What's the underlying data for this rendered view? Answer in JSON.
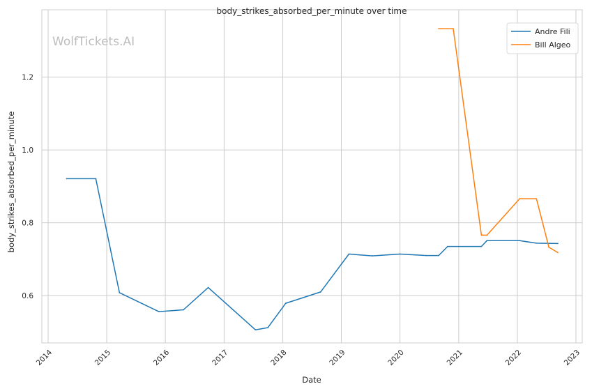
{
  "chart_data": {
    "type": "line",
    "title": "body_strikes_absorbed_per_minute over time",
    "xlabel": "Date",
    "ylabel": "body_strikes_absorbed_per_minute",
    "watermark": "WolfTickets.AI",
    "x_ticks": [
      "2014",
      "2015",
      "2016",
      "2017",
      "2018",
      "2019",
      "2020",
      "2021",
      "2022",
      "2023"
    ],
    "y_ticks": [
      "0.6",
      "0.8",
      "1.0",
      "1.2"
    ],
    "xlim": [
      "2014-01-01",
      "2023-01-01"
    ],
    "ylim": [
      0.47,
      1.385
    ],
    "grid": true,
    "legend_position": "top-right",
    "series": [
      {
        "name": "Andre Fili",
        "color": "#1f77b4",
        "points": [
          [
            "2014-04-26",
            0.921
          ],
          [
            "2014-10-25",
            0.921
          ],
          [
            "2015-03-21",
            0.608
          ],
          [
            "2015-11-21",
            0.556
          ],
          [
            "2016-04-23",
            0.561
          ],
          [
            "2016-09-24",
            0.622
          ],
          [
            "2017-07-15",
            0.506
          ],
          [
            "2017-09-30",
            0.512
          ],
          [
            "2018-01-20",
            0.579
          ],
          [
            "2018-08-25",
            0.61
          ],
          [
            "2019-02-17",
            0.714
          ],
          [
            "2019-07-13",
            0.709
          ],
          [
            "2020-01-01",
            0.714
          ],
          [
            "2020-06-13",
            0.71
          ],
          [
            "2020-08-29",
            0.71
          ],
          [
            "2020-10-24",
            0.735
          ],
          [
            "2021-05-22",
            0.735
          ],
          [
            "2021-06-26",
            0.751
          ],
          [
            "2022-01-15",
            0.751
          ],
          [
            "2022-04-30",
            0.744
          ],
          [
            "2022-09-10",
            0.743
          ]
        ]
      },
      {
        "name": "Bill Algeo",
        "color": "#ff7f0e",
        "points": [
          [
            "2020-08-29",
            1.333
          ],
          [
            "2020-11-28",
            1.333
          ],
          [
            "2021-05-22",
            0.766
          ],
          [
            "2021-06-26",
            0.766
          ],
          [
            "2022-01-15",
            0.866
          ],
          [
            "2022-04-30",
            0.866
          ],
          [
            "2022-07-16",
            0.733
          ],
          [
            "2022-09-10",
            0.718
          ]
        ]
      }
    ]
  }
}
